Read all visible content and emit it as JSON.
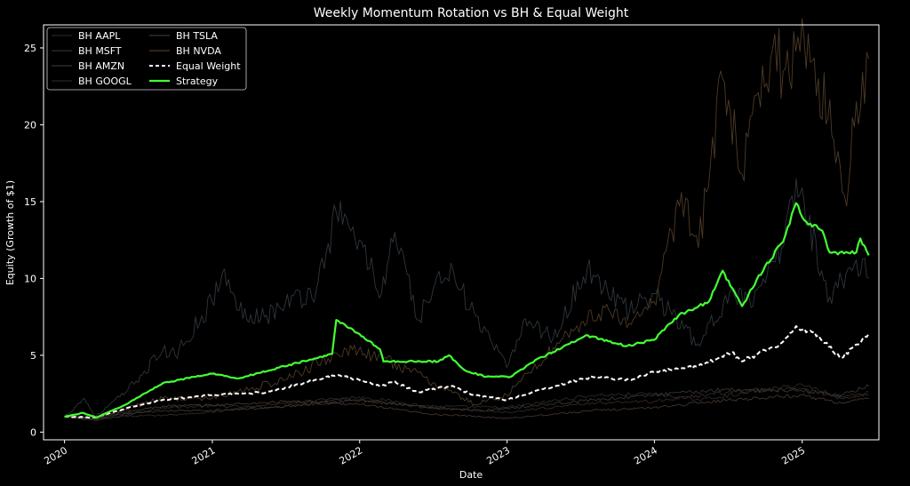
{
  "colors": {
    "background": "#000000",
    "axes": "#ffffff",
    "text": "#ffffff",
    "bh_aapl": "#2e2e2e",
    "bh_msft": "#3a3a3a",
    "bh_amzn": "#4a3a30",
    "bh_googl": "#3c2c26",
    "bh_tsla": "#2f363c",
    "bh_nvda": "#4e3a26",
    "equal_weight": "#ffffff",
    "strategy": "#44ff33"
  },
  "chart_data": {
    "type": "line",
    "title": "Weekly Momentum Rotation vs BH & Equal Weight",
    "xlabel": "Date",
    "ylabel": "Equity (Growth of $1)",
    "x_range": [
      "2019-11-10",
      "2025-07-10"
    ],
    "ylim": [
      -0.5,
      26.5
    ],
    "yticks": [
      0,
      5,
      10,
      15,
      20,
      25
    ],
    "xticks": [
      {
        "date": "2020-01-01",
        "label": "2020"
      },
      {
        "date": "2021-01-01",
        "label": "2021"
      },
      {
        "date": "2022-01-01",
        "label": "2022"
      },
      {
        "date": "2023-01-01",
        "label": "2023"
      },
      {
        "date": "2024-01-01",
        "label": "2024"
      },
      {
        "date": "2025-01-01",
        "label": "2025"
      }
    ],
    "grid": false,
    "legend": {
      "placement": "top-left",
      "columns": 2
    },
    "series": [
      {
        "name": "BH AAPL",
        "style": "thin",
        "color_key": "bh_aapl",
        "points": [
          [
            "2020-01-01",
            1.0
          ],
          [
            "2020-03-20",
            0.75
          ],
          [
            "2020-06-01",
            1.1
          ],
          [
            "2020-09-01",
            1.6
          ],
          [
            "2020-12-31",
            1.7
          ],
          [
            "2021-06-01",
            1.6
          ],
          [
            "2021-12-31",
            2.3
          ],
          [
            "2022-06-15",
            1.7
          ],
          [
            "2022-12-31",
            1.6
          ],
          [
            "2023-07-31",
            2.4
          ],
          [
            "2023-12-31",
            2.5
          ],
          [
            "2024-04-20",
            2.1
          ],
          [
            "2024-12-31",
            3.1
          ],
          [
            "2025-04-08",
            2.3
          ],
          [
            "2025-06-15",
            2.6
          ]
        ]
      },
      {
        "name": "BH MSFT",
        "style": "thin",
        "color_key": "bh_msft",
        "points": [
          [
            "2020-01-01",
            1.0
          ],
          [
            "2020-03-20",
            0.85
          ],
          [
            "2020-06-01",
            1.2
          ],
          [
            "2020-09-01",
            1.4
          ],
          [
            "2020-12-31",
            1.4
          ],
          [
            "2021-06-01",
            1.6
          ],
          [
            "2021-12-31",
            2.1
          ],
          [
            "2022-06-15",
            1.6
          ],
          [
            "2022-11-01",
            1.4
          ],
          [
            "2023-07-31",
            2.1
          ],
          [
            "2023-12-31",
            2.4
          ],
          [
            "2024-07-01",
            2.8
          ],
          [
            "2024-12-31",
            2.7
          ],
          [
            "2025-04-08",
            2.4
          ],
          [
            "2025-06-15",
            3.0
          ]
        ]
      },
      {
        "name": "BH AMZN",
        "style": "thin",
        "color_key": "bh_amzn",
        "points": [
          [
            "2020-01-01",
            1.0
          ],
          [
            "2020-03-20",
            0.95
          ],
          [
            "2020-06-01",
            1.3
          ],
          [
            "2020-09-01",
            1.7
          ],
          [
            "2020-12-31",
            1.75
          ],
          [
            "2021-07-10",
            2.0
          ],
          [
            "2021-12-31",
            1.8
          ],
          [
            "2022-06-15",
            1.2
          ],
          [
            "2022-12-31",
            0.9
          ],
          [
            "2023-07-31",
            1.4
          ],
          [
            "2023-12-31",
            1.6
          ],
          [
            "2024-07-01",
            2.1
          ],
          [
            "2024-12-31",
            2.4
          ],
          [
            "2025-04-08",
            1.9
          ],
          [
            "2025-06-15",
            2.2
          ]
        ]
      },
      {
        "name": "BH GOOGL",
        "style": "thin",
        "color_key": "bh_googl",
        "points": [
          [
            "2020-01-01",
            1.0
          ],
          [
            "2020-03-20",
            0.8
          ],
          [
            "2020-06-01",
            1.05
          ],
          [
            "2020-09-01",
            1.1
          ],
          [
            "2020-12-31",
            1.3
          ],
          [
            "2021-06-01",
            1.8
          ],
          [
            "2021-11-15",
            2.2
          ],
          [
            "2022-06-15",
            1.6
          ],
          [
            "2022-12-31",
            1.3
          ],
          [
            "2023-07-31",
            1.9
          ],
          [
            "2023-12-31",
            2.0
          ],
          [
            "2024-07-01",
            2.6
          ],
          [
            "2024-12-31",
            2.8
          ],
          [
            "2025-04-08",
            2.2
          ],
          [
            "2025-06-15",
            2.5
          ]
        ]
      },
      {
        "name": "BH TSLA",
        "style": "noisy",
        "color_key": "bh_tsla",
        "points": [
          [
            "2020-01-01",
            1.0
          ],
          [
            "2020-02-19",
            2.2
          ],
          [
            "2020-03-18",
            1.0
          ],
          [
            "2020-06-01",
            2.6
          ],
          [
            "2020-08-31",
            5.3
          ],
          [
            "2020-10-01",
            5.0
          ],
          [
            "2020-12-31",
            8.5
          ],
          [
            "2021-01-26",
            10.4
          ],
          [
            "2021-03-08",
            7.9
          ],
          [
            "2021-05-15",
            7.6
          ],
          [
            "2021-07-01",
            8.4
          ],
          [
            "2021-09-15",
            9.2
          ],
          [
            "2021-11-04",
            14.3
          ],
          [
            "2021-12-31",
            12.5
          ],
          [
            "2022-02-24",
            9.0
          ],
          [
            "2022-03-29",
            13.0
          ],
          [
            "2022-05-24",
            7.3
          ],
          [
            "2022-08-15",
            11.0
          ],
          [
            "2022-10-01",
            8.0
          ],
          [
            "2022-12-31",
            4.2
          ],
          [
            "2023-02-15",
            7.4
          ],
          [
            "2023-04-25",
            6.1
          ],
          [
            "2023-07-19",
            10.7
          ],
          [
            "2023-10-31",
            7.8
          ],
          [
            "2023-12-31",
            9.0
          ],
          [
            "2024-04-22",
            5.6
          ],
          [
            "2024-07-10",
            9.4
          ],
          [
            "2024-09-01",
            8.2
          ],
          [
            "2024-11-11",
            12.0
          ],
          [
            "2024-12-17",
            16.5
          ],
          [
            "2025-03-10",
            8.8
          ],
          [
            "2025-05-15",
            11.2
          ],
          [
            "2025-06-15",
            10.0
          ]
        ]
      },
      {
        "name": "BH NVDA",
        "style": "noisy",
        "color_key": "bh_nvda",
        "points": [
          [
            "2020-01-01",
            1.0
          ],
          [
            "2020-03-18",
            0.85
          ],
          [
            "2020-06-01",
            1.5
          ],
          [
            "2020-09-01",
            2.2
          ],
          [
            "2020-12-31",
            2.2
          ],
          [
            "2021-07-01",
            3.4
          ],
          [
            "2021-11-29",
            5.4
          ],
          [
            "2022-03-29",
            4.5
          ],
          [
            "2022-10-13",
            1.8
          ],
          [
            "2022-12-31",
            2.4
          ],
          [
            "2023-05-30",
            6.4
          ],
          [
            "2023-08-31",
            8.1
          ],
          [
            "2023-10-25",
            6.8
          ],
          [
            "2023-12-31",
            8.5
          ],
          [
            "2024-03-08",
            15.6
          ],
          [
            "2024-04-19",
            12.0
          ],
          [
            "2024-06-18",
            23.0
          ],
          [
            "2024-08-05",
            16.8
          ],
          [
            "2024-10-20",
            25.0
          ],
          [
            "2024-11-15",
            23.5
          ],
          [
            "2025-01-06",
            25.6
          ],
          [
            "2025-02-10",
            23.0
          ],
          [
            "2025-03-20",
            19.0
          ],
          [
            "2025-04-21",
            14.7
          ],
          [
            "2025-05-15",
            21.5
          ],
          [
            "2025-06-15",
            24.3
          ]
        ]
      },
      {
        "name": "Equal Weight",
        "style": "dashed",
        "color_key": "equal_weight",
        "points": [
          [
            "2020-01-01",
            1.0
          ],
          [
            "2020-03-18",
            0.95
          ],
          [
            "2020-06-01",
            1.55
          ],
          [
            "2020-09-01",
            2.1
          ],
          [
            "2020-12-31",
            2.4
          ],
          [
            "2021-05-15",
            2.6
          ],
          [
            "2021-07-01",
            2.9
          ],
          [
            "2021-11-04",
            3.7
          ],
          [
            "2021-12-31",
            3.4
          ],
          [
            "2022-02-24",
            3.0
          ],
          [
            "2022-03-29",
            3.3
          ],
          [
            "2022-05-24",
            2.6
          ],
          [
            "2022-08-15",
            3.0
          ],
          [
            "2022-10-13",
            2.4
          ],
          [
            "2022-12-31",
            2.1
          ],
          [
            "2023-04-01",
            2.8
          ],
          [
            "2023-07-31",
            3.6
          ],
          [
            "2023-10-31",
            3.4
          ],
          [
            "2023-12-31",
            3.9
          ],
          [
            "2024-04-19",
            4.3
          ],
          [
            "2024-07-10",
            5.2
          ],
          [
            "2024-08-05",
            4.6
          ],
          [
            "2024-11-11",
            5.8
          ],
          [
            "2024-12-17",
            6.9
          ],
          [
            "2025-02-10",
            6.3
          ],
          [
            "2025-04-08",
            4.8
          ],
          [
            "2025-05-15",
            5.7
          ],
          [
            "2025-06-15",
            6.4
          ]
        ]
      },
      {
        "name": "Strategy",
        "style": "bold",
        "color_key": "strategy",
        "points": [
          [
            "2020-01-01",
            1.0
          ],
          [
            "2020-02-15",
            1.25
          ],
          [
            "2020-03-20",
            0.95
          ],
          [
            "2020-06-01",
            1.8
          ],
          [
            "2020-09-01",
            3.2
          ],
          [
            "2020-12-31",
            3.8
          ],
          [
            "2021-03-08",
            3.5
          ],
          [
            "2021-06-15",
            4.2
          ],
          [
            "2021-09-15",
            4.8
          ],
          [
            "2021-10-25",
            5.1
          ],
          [
            "2021-11-04",
            7.3
          ],
          [
            "2021-12-31",
            6.4
          ],
          [
            "2022-02-20",
            5.4
          ],
          [
            "2022-03-01",
            4.6
          ],
          [
            "2022-07-15",
            4.6
          ],
          [
            "2022-08-10",
            5.0
          ],
          [
            "2022-09-20",
            4.0
          ],
          [
            "2022-11-10",
            3.6
          ],
          [
            "2023-01-10",
            3.6
          ],
          [
            "2023-03-01",
            4.5
          ],
          [
            "2023-07-15",
            6.3
          ],
          [
            "2023-10-25",
            5.6
          ],
          [
            "2023-12-31",
            6.0
          ],
          [
            "2024-03-01",
            7.6
          ],
          [
            "2024-05-15",
            8.5
          ],
          [
            "2024-06-18",
            10.5
          ],
          [
            "2024-08-05",
            8.2
          ],
          [
            "2024-10-01",
            10.8
          ],
          [
            "2024-11-15",
            12.4
          ],
          [
            "2024-12-17",
            14.9
          ],
          [
            "2025-01-06",
            13.8
          ],
          [
            "2025-02-20",
            13.1
          ],
          [
            "2025-03-10",
            11.7
          ],
          [
            "2025-05-15",
            11.7
          ],
          [
            "2025-05-25",
            12.6
          ],
          [
            "2025-06-15",
            11.5
          ]
        ]
      }
    ]
  }
}
